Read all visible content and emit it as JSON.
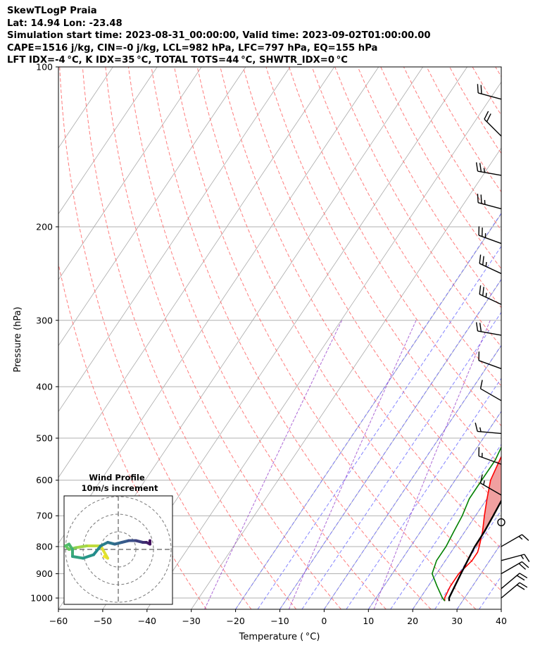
{
  "header": {
    "line1": "SkewTLogP Praia",
    "line2": "Lat: 14.94   Lon: -23.48",
    "line3": "Simulation start time: 2023-08-31_00:00:00, Valid time: 2023-09-02T01:00:00.00",
    "line4": "CAPE=1516 j/kg, CIN=-0 j/kg, LCL=982 hPa, LFC=797 hPa, EQ=155 hPa",
    "line5": "LFT IDX=-4 °C, K IDX=35 °C, TOTAL TOTS=44 °C, SHWTR_IDX=0 °C"
  },
  "chart_data": {
    "type": "line",
    "title": "SkewTLogP Praia",
    "xlabel": "Temperature ( °C)",
    "ylabel": "Pressure (hPa)",
    "xlim": [
      -60,
      40
    ],
    "ylim": [
      1050,
      100
    ],
    "x_ticks": [
      -60,
      -50,
      -40,
      -30,
      -20,
      -10,
      0,
      10,
      20,
      30,
      40
    ],
    "x_tick_labels": [
      "−60",
      "−50",
      "−40",
      "−30",
      "−20",
      "−10",
      "0",
      "10",
      "20",
      "30",
      "40"
    ],
    "y_ticks": [
      1000,
      900,
      800,
      700,
      600,
      500,
      400,
      300,
      200,
      100
    ],
    "y_tick_labels": [
      "1000",
      "900",
      "800",
      "700",
      "600",
      "500",
      "400",
      "300",
      "200",
      "100"
    ],
    "colors": {
      "temperature": "#ff0000",
      "dewpoint": "#008000",
      "parcel": "#000000",
      "cape_fill": "#f0a0a0",
      "cin_fill": "#9fc4e0",
      "dry_adiabat": "#ff6666",
      "moist_adiabat": "#6f6fff",
      "mixing_ratio": "#9944cc",
      "isotherm": "#aaaaaa"
    },
    "series": [
      {
        "name": "Temperature",
        "points": [
          [
            26,
            1013
          ],
          [
            25.5,
            1000
          ],
          [
            25,
            950
          ],
          [
            25,
            900
          ],
          [
            26,
            850
          ],
          [
            26,
            820
          ],
          [
            25.5,
            800
          ],
          [
            24,
            750
          ],
          [
            22,
            700
          ],
          [
            20,
            650
          ],
          [
            18,
            600
          ],
          [
            17,
            550
          ],
          [
            16,
            500
          ],
          [
            15,
            450
          ],
          [
            13,
            400
          ],
          [
            10,
            350
          ],
          [
            7,
            300
          ],
          [
            4,
            270
          ],
          [
            0,
            240
          ],
          [
            -4,
            210
          ],
          [
            -9,
            180
          ],
          [
            -10,
            167
          ],
          [
            -9,
            160
          ],
          [
            -8,
            150
          ],
          [
            -8,
            140
          ],
          [
            -9,
            130
          ],
          [
            -10,
            120
          ],
          [
            -10.5,
            110
          ],
          [
            -8,
            103
          ],
          [
            -6,
            100
          ]
        ]
      },
      {
        "name": "Dewpoint",
        "points": [
          [
            26,
            1013
          ],
          [
            25,
            1000
          ],
          [
            22,
            950
          ],
          [
            19,
            900
          ],
          [
            18,
            850
          ],
          [
            18,
            800
          ],
          [
            17.5,
            750
          ],
          [
            17,
            700
          ],
          [
            16,
            650
          ],
          [
            16,
            600
          ],
          [
            16,
            550
          ],
          [
            15,
            500
          ],
          [
            14,
            450
          ],
          [
            12,
            400
          ],
          [
            8,
            350
          ],
          [
            4,
            300
          ],
          [
            0,
            270
          ],
          [
            -3,
            240
          ],
          [
            -8,
            210
          ],
          [
            -9,
            195
          ],
          [
            -10,
            185
          ],
          [
            -13,
            170
          ],
          [
            -16,
            160
          ],
          [
            -19,
            150
          ],
          [
            -17,
            140
          ],
          [
            -15,
            130
          ],
          [
            -13,
            120
          ],
          [
            -14,
            113
          ],
          [
            -12,
            107
          ],
          [
            -10,
            100
          ]
        ]
      },
      {
        "name": "Parcel",
        "points": [
          [
            27,
            1013
          ],
          [
            26.5,
            1000
          ],
          [
            26,
            950
          ],
          [
            25.5,
            900
          ],
          [
            25,
            850
          ],
          [
            24.5,
            800
          ],
          [
            24.4,
            750
          ],
          [
            24,
            700
          ],
          [
            23.5,
            650
          ],
          [
            23,
            600
          ],
          [
            22.4,
            550
          ],
          [
            21.8,
            500
          ],
          [
            20.8,
            450
          ],
          [
            19.4,
            400
          ],
          [
            17,
            350
          ],
          [
            13,
            300
          ],
          [
            10,
            270
          ],
          [
            5.5,
            240
          ],
          [
            0.5,
            210
          ],
          [
            -5,
            180
          ],
          [
            -8,
            167
          ],
          [
            -10,
            160
          ],
          [
            -13,
            150
          ],
          [
            -16,
            140
          ],
          [
            -19,
            130
          ],
          [
            -22,
            120
          ],
          [
            -25.5,
            110
          ],
          [
            -29,
            100
          ]
        ]
      }
    ],
    "hodograph": {
      "title": "Wind Profile",
      "subtitle": "10m/s increment",
      "colormap": "viridis",
      "points": [
        [
          -4,
          -2
        ],
        [
          -3,
          -2.5
        ],
        [
          -5,
          1
        ],
        [
          -9,
          1
        ],
        [
          -12,
          0.5
        ],
        [
          -14,
          0
        ],
        [
          -15,
          1
        ],
        [
          -14,
          1.5
        ],
        [
          -13,
          0
        ],
        [
          -13,
          -2
        ],
        [
          -10,
          -2.5
        ],
        [
          -7,
          -1.5
        ],
        [
          -5,
          1
        ],
        [
          -3,
          2
        ],
        [
          -1,
          1.5
        ],
        [
          1,
          2
        ],
        [
          3,
          2.5
        ],
        [
          5,
          2.5
        ],
        [
          7,
          2
        ],
        [
          8,
          2
        ],
        [
          9,
          1.5
        ],
        [
          9,
          2.5
        ]
      ]
    },
    "wind_barbs": [
      {
        "pressure": 1000,
        "speed_kt": 20,
        "direction_deg": 50
      },
      {
        "pressure": 960,
        "speed_kt": 20,
        "direction_deg": 50
      },
      {
        "pressure": 900,
        "speed_kt": 20,
        "direction_deg": 60
      },
      {
        "pressure": 850,
        "speed_kt": 15,
        "direction_deg": 75
      },
      {
        "pressure": 800,
        "speed_kt": 15,
        "direction_deg": 60
      },
      {
        "pressure": 720,
        "speed_kt": 0,
        "direction_deg": 0
      },
      {
        "pressure": 640,
        "speed_kt": 15,
        "direction_deg": 300
      },
      {
        "pressure": 560,
        "speed_kt": 15,
        "direction_deg": 290
      },
      {
        "pressure": 490,
        "speed_kt": 15,
        "direction_deg": 275
      },
      {
        "pressure": 425,
        "speed_kt": 10,
        "direction_deg": 300
      },
      {
        "pressure": 370,
        "speed_kt": 10,
        "direction_deg": 290
      },
      {
        "pressure": 320,
        "speed_kt": 20,
        "direction_deg": 280
      },
      {
        "pressure": 280,
        "speed_kt": 25,
        "direction_deg": 295
      },
      {
        "pressure": 245,
        "speed_kt": 25,
        "direction_deg": 295
      },
      {
        "pressure": 215,
        "speed_kt": 25,
        "direction_deg": 290
      },
      {
        "pressure": 185,
        "speed_kt": 25,
        "direction_deg": 285
      },
      {
        "pressure": 160,
        "speed_kt": 25,
        "direction_deg": 280
      },
      {
        "pressure": 135,
        "speed_kt": 20,
        "direction_deg": 315
      },
      {
        "pressure": 115,
        "speed_kt": 20,
        "direction_deg": 285
      }
    ]
  }
}
